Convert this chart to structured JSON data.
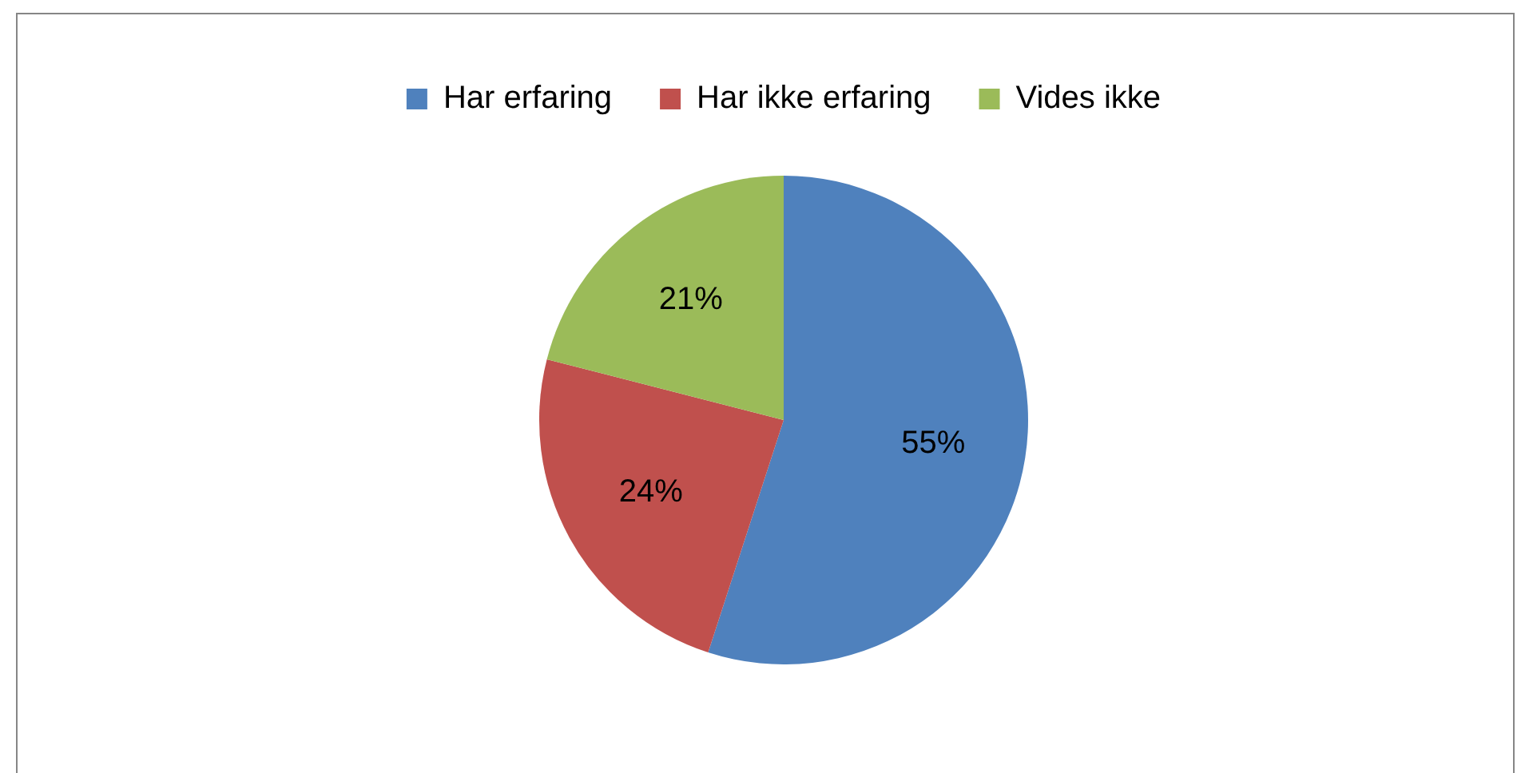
{
  "chart_data": {
    "type": "pie",
    "categories": [
      "Har erfaring",
      "Har ikke erfaring",
      "Vides ikke"
    ],
    "values": [
      55,
      24,
      21
    ],
    "colors": [
      "#4f81bd",
      "#c0504d",
      "#9bbb59"
    ],
    "value_labels": [
      "55%",
      "24%",
      "21%"
    ],
    "legend": "top"
  }
}
